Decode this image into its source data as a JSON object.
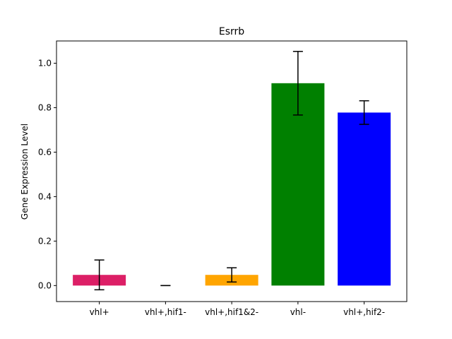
{
  "chart_data": {
    "type": "bar",
    "title": "Esrrb",
    "xlabel": "",
    "ylabel": "Gene Expression Level",
    "categories": [
      "vhl+",
      "vhl+,hif1-",
      "vhl+,hif1&2-",
      "vhl-",
      "vhl+,hif2-"
    ],
    "values": [
      0.048,
      0.0,
      0.048,
      0.91,
      0.778
    ],
    "errors": [
      0.067,
      0.0,
      0.032,
      0.143,
      0.053
    ],
    "colors": [
      "#dc1f66",
      "#dc1f66",
      "#ffa500",
      "#008000",
      "#0000ff"
    ],
    "ylim": [
      -0.072,
      1.1
    ],
    "yticks": [
      0.0,
      0.2,
      0.4,
      0.6,
      0.8,
      1.0
    ],
    "ytick_labels": [
      "0.0",
      "0.2",
      "0.4",
      "0.6",
      "0.8",
      "1.0"
    ],
    "grid": false,
    "legend": "none"
  }
}
